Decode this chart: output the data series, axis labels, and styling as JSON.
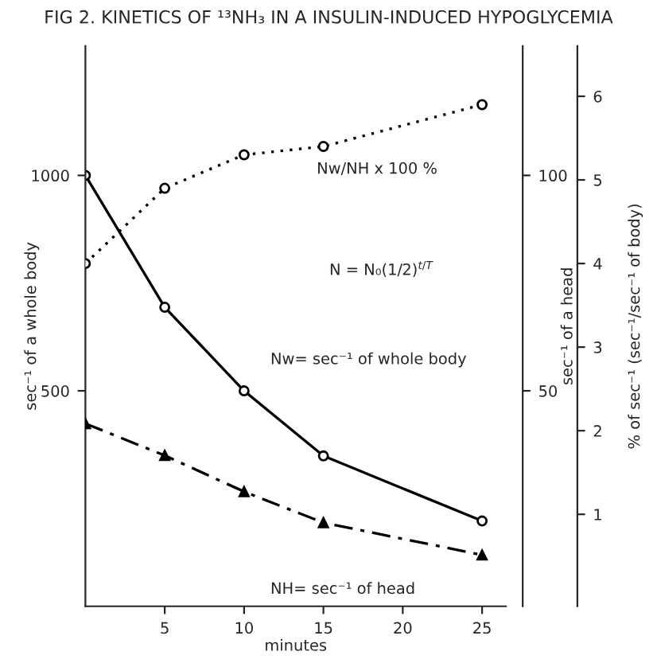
{
  "chart_data": {
    "type": "line",
    "title": "FIG 2. KINETICS OF ¹³NH₃ IN A INSULIN-INDUCED HYPOGLYCEMIA",
    "xlabel": "minutes",
    "ylabel": "sec⁻¹ of a whole body",
    "y2label": "sec⁻¹ of a head",
    "y3label": "% of sec⁻¹ (sec⁻¹/sec⁻¹ of body)",
    "x": [
      0,
      5,
      10,
      15,
      25
    ],
    "series": [
      {
        "color": "#000000",
        "values": [
          1000,
          694,
          500,
          349,
          198
        ],
        "marker": "circle",
        "line_style": "solid"
      },
      {
        "color": "#000000",
        "values": [
          42.4,
          35,
          26.6,
          19.4,
          11.9
        ],
        "axis": "y2",
        "marker": "triangle",
        "line_style": "dashed"
      },
      {
        "color": "#000000",
        "values": [
          4.0,
          4.9,
          5.3,
          5.4,
          5.9
        ],
        "axis": "y3",
        "marker": "circle",
        "line_style": "dotted"
      }
    ],
    "xlim": [
      0,
      26.5
    ],
    "xticks": [
      5,
      10,
      15,
      20,
      25
    ],
    "ylim": [
      0,
      1300
    ],
    "yticks": [
      500,
      1000
    ],
    "y2lim": [
      0,
      130
    ],
    "y2ticks": [
      50,
      100
    ],
    "y3lim": [
      -0.1,
      6.6
    ],
    "y3ticks": [
      1,
      2,
      3,
      4,
      5,
      6
    ],
    "annotations": [
      "Nw/NH x 100 %",
      "N = N₀(1/2)$^{t/T}$",
      "Nw= sec⁻¹ of whole body",
      "NH= sec⁻¹ of head"
    ],
    "grid": false,
    "legend": false
  }
}
